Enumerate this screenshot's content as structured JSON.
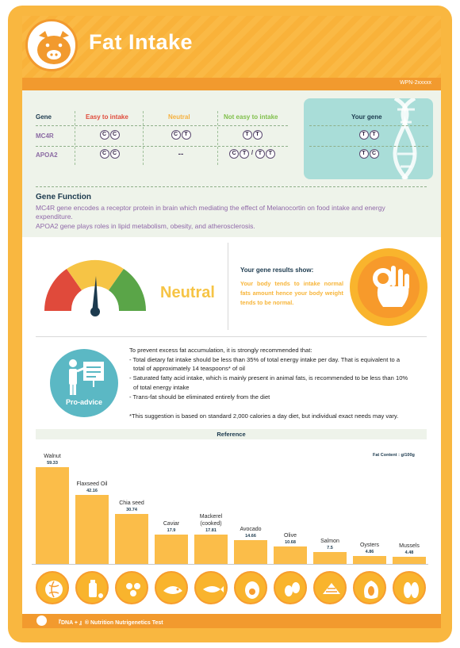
{
  "header": {
    "title": "Fat Intake",
    "report_id": "WPN-2xxxxx"
  },
  "gene_table": {
    "headers": {
      "gene": "Gene",
      "easy": "Easy to intake",
      "neutral": "Neutral",
      "not_easy": "Not easy to intake",
      "your_gene": "Your gene"
    },
    "rows": [
      {
        "gene": "MC4R",
        "easy": [
          "C",
          "C"
        ],
        "neutral": [
          "C",
          "T"
        ],
        "not_easy": [
          "T",
          "T"
        ],
        "your_gene": [
          "T",
          "T"
        ]
      },
      {
        "gene": "APOA2",
        "easy": [
          "C",
          "C"
        ],
        "neutral_text": "--",
        "not_easy": [
          "C",
          "T",
          "T",
          "T"
        ],
        "not_easy_sep": "/",
        "your_gene": [
          "T",
          "C"
        ]
      }
    ]
  },
  "gene_function": {
    "title": "Gene Function",
    "lines": [
      "MC4R gene encodes a receptor protein in brain which mediating the effect of Melanocortin on food intake and energy",
      "expenditure.",
      "APOA2 gene plays roles in lipid metabolism, obesity, and atherosclerosis."
    ]
  },
  "result": {
    "level": "Neutral",
    "title": "Your gene results show:",
    "text": "Your body tends to intake normal fats amount hence your body weight tends to be normal.",
    "gauge_colors": [
      "#e04a3b",
      "#f6c445",
      "#5aa548"
    ]
  },
  "advice": {
    "label": "Pro-advice",
    "lines": [
      "To prevent excess fat accumulation, it is strongly recommended that:",
      "- Total dietary fat intake should be less than 35% of total energy intake per day. That is equivalent to a",
      "  total of approximately 14 teaspoons* of oil",
      "- Saturated fatty acid intake, which is mainly present in animal fats, is recommended to be less than 10%",
      "  of total energy intake",
      "- Trans-fat should be eliminated entirely from the diet",
      "",
      "*This suggestion is based on standard 2,000 calories a day diet, but individual exact needs may vary."
    ]
  },
  "reference": {
    "title": "Reference",
    "unit": "Fat Content : g/100g"
  },
  "chart_data": {
    "type": "bar",
    "title": "Reference",
    "ylabel": "Fat Content : g/100g",
    "categories": [
      "Walnut",
      "Flaxseed Oil",
      "Chia seed",
      "Caviar",
      "Mackerel (cooked)",
      "Avocado",
      "Olive",
      "Salmon",
      "Oysters",
      "Mussels"
    ],
    "category_lines": [
      [
        "Walnut"
      ],
      [
        "Flaxseed Oil"
      ],
      [
        "Chia seed"
      ],
      [
        "Caviar"
      ],
      [
        "Mackerel",
        "(cooked)"
      ],
      [
        "Avocado"
      ],
      [
        "Olive"
      ],
      [
        "Salmon"
      ],
      [
        "Oysters"
      ],
      [
        "Mussels"
      ]
    ],
    "values": [
      59.33,
      42.16,
      30.74,
      17.9,
      17.81,
      14.66,
      10.68,
      7.5,
      4.86,
      4.48
    ],
    "value_labels": [
      "59.33",
      "42.16",
      "30.74",
      "17.9",
      "17.81",
      "14.66",
      "10.68",
      "7.5",
      "4.86",
      "4.48"
    ],
    "bar_color": "#fbbd49",
    "grid": false
  },
  "food_icons": [
    "walnut-icon",
    "flaxseed-oil-icon",
    "chia-seed-icon",
    "caviar-icon",
    "mackerel-icon",
    "avocado-icon",
    "olive-icon",
    "salmon-icon",
    "oysters-icon",
    "mussels-icon"
  ],
  "footer": {
    "text": "『DNA + 』®  Nutrition Nutrigenetics Test"
  },
  "colors": {
    "frame": "#f9b740",
    "accent": "#f29a2e",
    "purple": "#8f68a8",
    "navy": "#1c3a4e",
    "teal": "#a9ddd8"
  }
}
